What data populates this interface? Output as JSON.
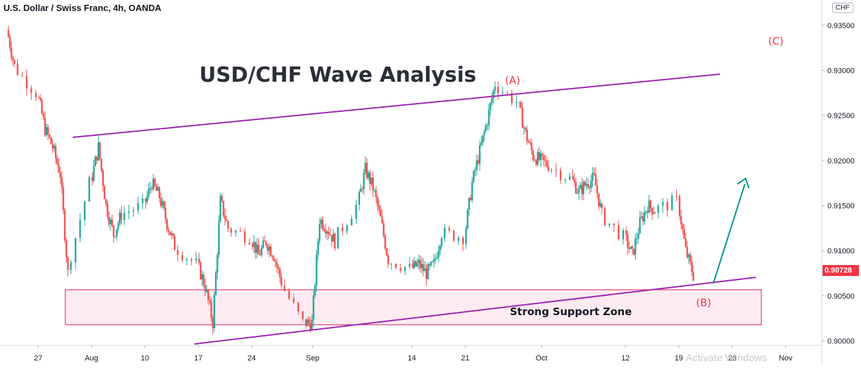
{
  "header": {
    "symbol": "U.S. Dollar / Swiss Franc, 4h, OANDA",
    "currency_badge": "CHF"
  },
  "annotations": {
    "title": "USD/CHF Wave Analysis",
    "support_label": "Strong Support Zone",
    "wave_a": "(A)",
    "wave_b": "(B)",
    "wave_c": "(C)"
  },
  "price_tag": "0.90728",
  "watermark": "Activate Windows",
  "colors": {
    "bull": "#26a69a",
    "bear": "#ef5350",
    "channel": "#9c27b0",
    "arrow": "#009688",
    "zone_fill": "#fce4ec",
    "zone_border": "#d81b60",
    "label_red": "#f23645"
  },
  "chart_data": {
    "type": "candlestick",
    "title": "USD/CHF Wave Analysis",
    "timeframe": "4h",
    "source": "OANDA",
    "ylim": [
      0.8995,
      0.9378
    ],
    "y_ticks": [
      "0.90000",
      "0.90500",
      "0.91000",
      "0.91500",
      "0.92000",
      "0.92500",
      "0.93000",
      "0.93500"
    ],
    "x_ticks": [
      "27",
      "Aug",
      "10",
      "17",
      "24",
      "Sep",
      "14",
      "21",
      "Oct",
      "12",
      "19",
      "26",
      "Nov"
    ],
    "last_price": 0.90728,
    "price_path": [
      [
        "2020-07-23",
        0.9345
      ],
      [
        "2020-07-24",
        0.9305
      ],
      [
        "2020-07-27",
        0.9275
      ],
      [
        "2020-07-28",
        0.9235
      ],
      [
        "2020-07-29",
        0.9215
      ],
      [
        "2020-07-30",
        0.9185
      ],
      [
        "2020-07-31",
        0.9075
      ],
      [
        "2020-08-03",
        0.9175
      ],
      [
        "2020-08-04",
        0.9215
      ],
      [
        "2020-08-05",
        0.915
      ],
      [
        "2020-08-06",
        0.9118
      ],
      [
        "2020-08-07",
        0.914
      ],
      [
        "2020-08-10",
        0.915
      ],
      [
        "2020-08-11",
        0.9175
      ],
      [
        "2020-08-12",
        0.916
      ],
      [
        "2020-08-13",
        0.913
      ],
      [
        "2020-08-14",
        0.9105
      ],
      [
        "2020-08-17",
        0.9085
      ],
      [
        "2020-08-18",
        0.906
      ],
      [
        "2020-08-19",
        0.902
      ],
      [
        "2020-08-20",
        0.9155
      ],
      [
        "2020-08-21",
        0.9125
      ],
      [
        "2020-08-24",
        0.9115
      ],
      [
        "2020-08-25",
        0.9095
      ],
      [
        "2020-08-26",
        0.911
      ],
      [
        "2020-08-27",
        0.9095
      ],
      [
        "2020-08-28",
        0.9065
      ],
      [
        "2020-08-31",
        0.902
      ],
      [
        "2020-09-01",
        0.902
      ],
      [
        "2020-09-02",
        0.9135
      ],
      [
        "2020-09-03",
        0.9125
      ],
      [
        "2020-09-04",
        0.911
      ],
      [
        "2020-09-07",
        0.915
      ],
      [
        "2020-09-08",
        0.919
      ],
      [
        "2020-09-09",
        0.917
      ],
      [
        "2020-09-10",
        0.9135
      ],
      [
        "2020-09-11",
        0.909
      ],
      [
        "2020-09-14",
        0.908
      ],
      [
        "2020-09-15",
        0.9085
      ],
      [
        "2020-09-16",
        0.9075
      ],
      [
        "2020-09-17",
        0.9085
      ],
      [
        "2020-09-18",
        0.912
      ],
      [
        "2020-09-21",
        0.9115
      ],
      [
        "2020-09-22",
        0.9175
      ],
      [
        "2020-09-23",
        0.921
      ],
      [
        "2020-09-24",
        0.9245
      ],
      [
        "2020-09-25",
        0.9285
      ],
      [
        "2020-09-28",
        0.9265
      ],
      [
        "2020-09-29",
        0.923
      ],
      [
        "2020-09-30",
        0.9205
      ],
      [
        "2020-10-01",
        0.92
      ],
      [
        "2020-10-02",
        0.9195
      ],
      [
        "2020-10-05",
        0.918
      ],
      [
        "2020-10-06",
        0.9165
      ],
      [
        "2020-10-07",
        0.9175
      ],
      [
        "2020-10-08",
        0.918
      ],
      [
        "2020-10-09",
        0.914
      ],
      [
        "2020-10-12",
        0.9115
      ],
      [
        "2020-10-13",
        0.9095
      ],
      [
        "2020-10-14",
        0.913
      ],
      [
        "2020-10-15",
        0.915
      ],
      [
        "2020-10-16",
        0.9145
      ],
      [
        "2020-10-19",
        0.9155
      ],
      [
        "2020-10-20",
        0.91
      ],
      [
        "2020-10-21",
        0.9073
      ]
    ]
  }
}
